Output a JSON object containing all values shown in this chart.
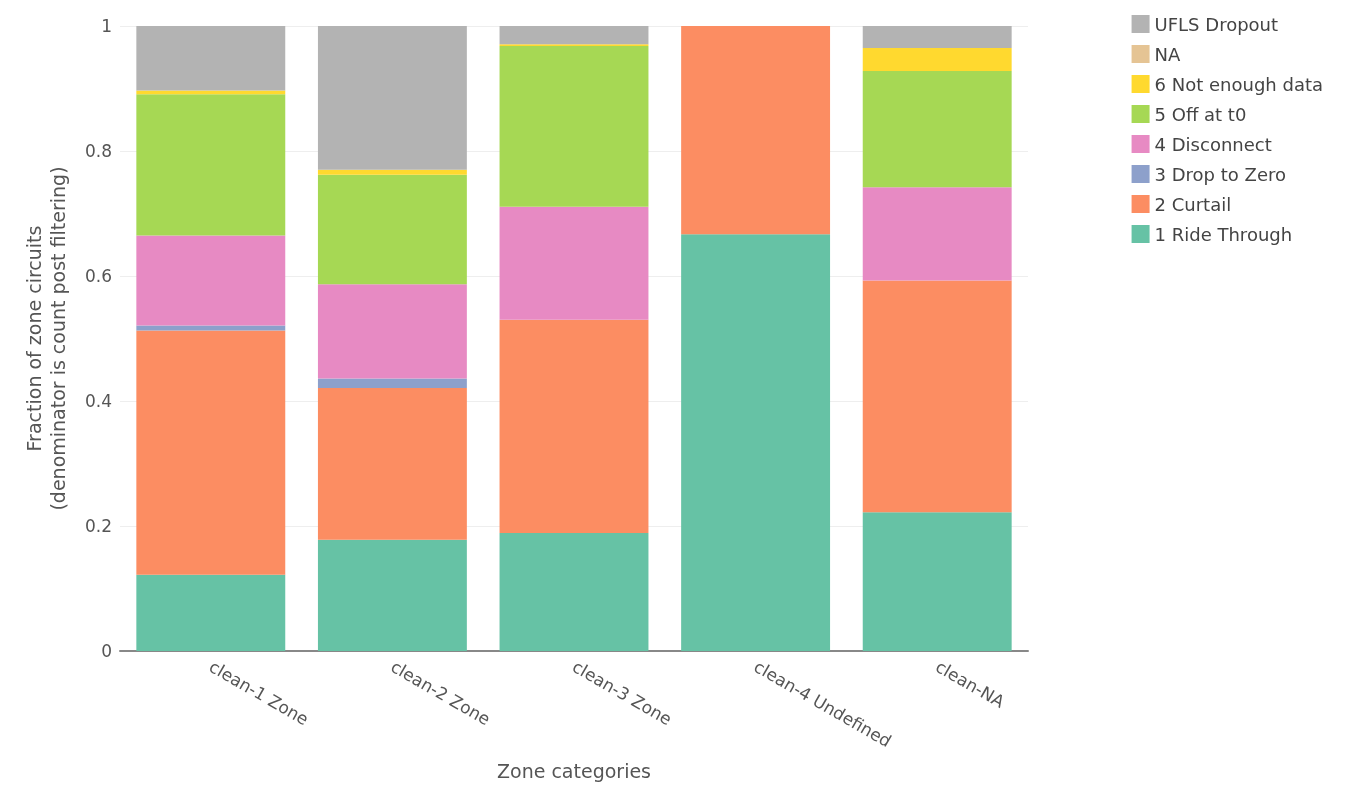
{
  "chart_data": {
    "type": "bar",
    "stacked": true,
    "xlabel": "Zone categories",
    "ylabel": "Fraction of zone circuits\n(denominator is count post filtering)",
    "categories": [
      "clean-1 Zone",
      "clean-2 Zone",
      "clean-3 Zone",
      "clean-4 Undefined",
      "clean-NA"
    ],
    "series": [
      {
        "name": "1 Ride Through",
        "color": "#66c2a5",
        "values": [
          0.122,
          0.178,
          0.189,
          0.667,
          0.222
        ]
      },
      {
        "name": "2 Curtail",
        "color": "#fc8d62",
        "values": [
          0.391,
          0.243,
          0.341,
          0.333,
          0.371
        ]
      },
      {
        "name": "3 Drop to Zero",
        "color": "#8da0cb",
        "values": [
          0.008,
          0.015,
          0,
          0,
          0
        ]
      },
      {
        "name": "4 Disconnect",
        "color": "#e78ac3",
        "values": [
          0.144,
          0.151,
          0.181,
          0,
          0.149
        ]
      },
      {
        "name": "5 Off at t0",
        "color": "#a6d854",
        "values": [
          0.226,
          0.175,
          0.257,
          0,
          0.186
        ]
      },
      {
        "name": "6 Not enough data",
        "color": "#ffd92f",
        "values": [
          0.006,
          0.008,
          0.003,
          0,
          0.037
        ]
      },
      {
        "name": "NA",
        "color": "#e5c494",
        "values": [
          0,
          0,
          0,
          0,
          0
        ]
      },
      {
        "name": "UFLS Dropout",
        "color": "#b3b3b3",
        "values": [
          0.103,
          0.23,
          0.029,
          0,
          0.035
        ]
      }
    ],
    "ylim": [
      0,
      1
    ],
    "yticks": [
      0,
      0.2,
      0.4,
      0.6,
      0.8,
      1
    ],
    "grid": "y",
    "legend": "top right"
  }
}
